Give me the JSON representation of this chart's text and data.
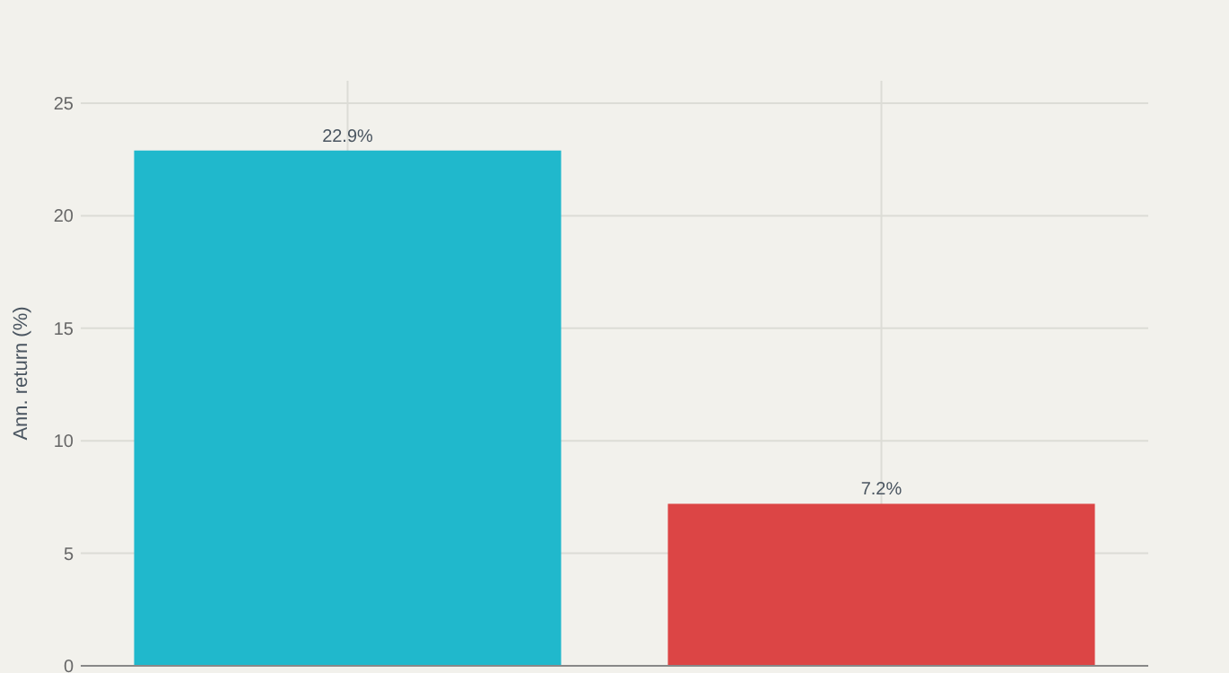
{
  "chart_data": {
    "type": "bar",
    "ylabel": "Ann. return (%)",
    "categories": [
      null,
      null
    ],
    "values": [
      22.9,
      7.2
    ],
    "colors": [
      "#20b8cc",
      "#dc4545"
    ],
    "value_labels": [
      "22.9%",
      "7.2%"
    ],
    "ylim": [
      0,
      26
    ],
    "yticks": [
      0,
      5,
      10,
      15,
      20,
      25
    ],
    "grid": true
  }
}
